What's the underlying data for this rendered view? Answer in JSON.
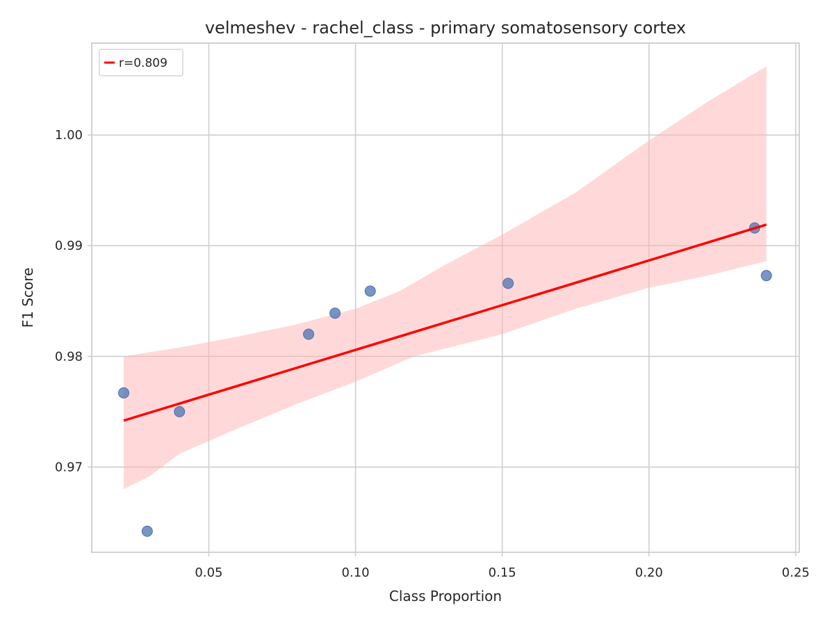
{
  "chart_data": {
    "type": "scatter",
    "title": "velmeshev - rachel_class - primary somatosensory cortex",
    "xlabel": "Class Proportion",
    "ylabel": "F1 Score",
    "xlim": [
      0.0101,
      0.2512
    ],
    "ylim": [
      0.9623,
      1.0083
    ],
    "xticks": [
      0.05,
      0.1,
      0.15,
      0.2,
      0.25
    ],
    "xtick_labels": [
      "0.05",
      "0.10",
      "0.15",
      "0.20",
      "0.25"
    ],
    "yticks": [
      0.97,
      0.98,
      0.99,
      1.0
    ],
    "ytick_labels": [
      "0.97",
      "0.98",
      "0.99",
      "1.00"
    ],
    "grid": true,
    "legend_position": "top-left",
    "points": {
      "x": [
        0.021,
        0.029,
        0.04,
        0.084,
        0.093,
        0.105,
        0.152,
        0.236,
        0.24
      ],
      "y": [
        0.9767,
        0.9642,
        0.975,
        0.982,
        0.9839,
        0.9859,
        0.9866,
        0.9916,
        0.9873
      ],
      "color": "#4c72b0"
    },
    "regression": {
      "label": "r=0.809",
      "x": [
        0.021,
        0.24
      ],
      "y": [
        0.9742,
        0.9919
      ],
      "color": "#ff0000",
      "ci_color": "#ffb3b3",
      "ci_upper": [
        [
          0.021,
          0.98
        ],
        [
          0.04,
          0.9808
        ],
        [
          0.06,
          0.9818
        ],
        [
          0.08,
          0.9829
        ],
        [
          0.1,
          0.9843
        ],
        [
          0.115,
          0.9859
        ],
        [
          0.13,
          0.9882
        ],
        [
          0.15,
          0.991
        ],
        [
          0.175,
          0.9948
        ],
        [
          0.2,
          0.9995
        ],
        [
          0.22,
          1.003
        ],
        [
          0.24,
          1.0062
        ]
      ],
      "ci_lower": [
        [
          0.021,
          0.968
        ],
        [
          0.03,
          0.9692
        ],
        [
          0.04,
          0.9712
        ],
        [
          0.06,
          0.9735
        ],
        [
          0.08,
          0.9757
        ],
        [
          0.1,
          0.9777
        ],
        [
          0.12,
          0.98
        ],
        [
          0.15,
          0.982
        ],
        [
          0.175,
          0.9843
        ],
        [
          0.2,
          0.9862
        ],
        [
          0.22,
          0.9873
        ],
        [
          0.24,
          0.9886
        ]
      ]
    }
  }
}
